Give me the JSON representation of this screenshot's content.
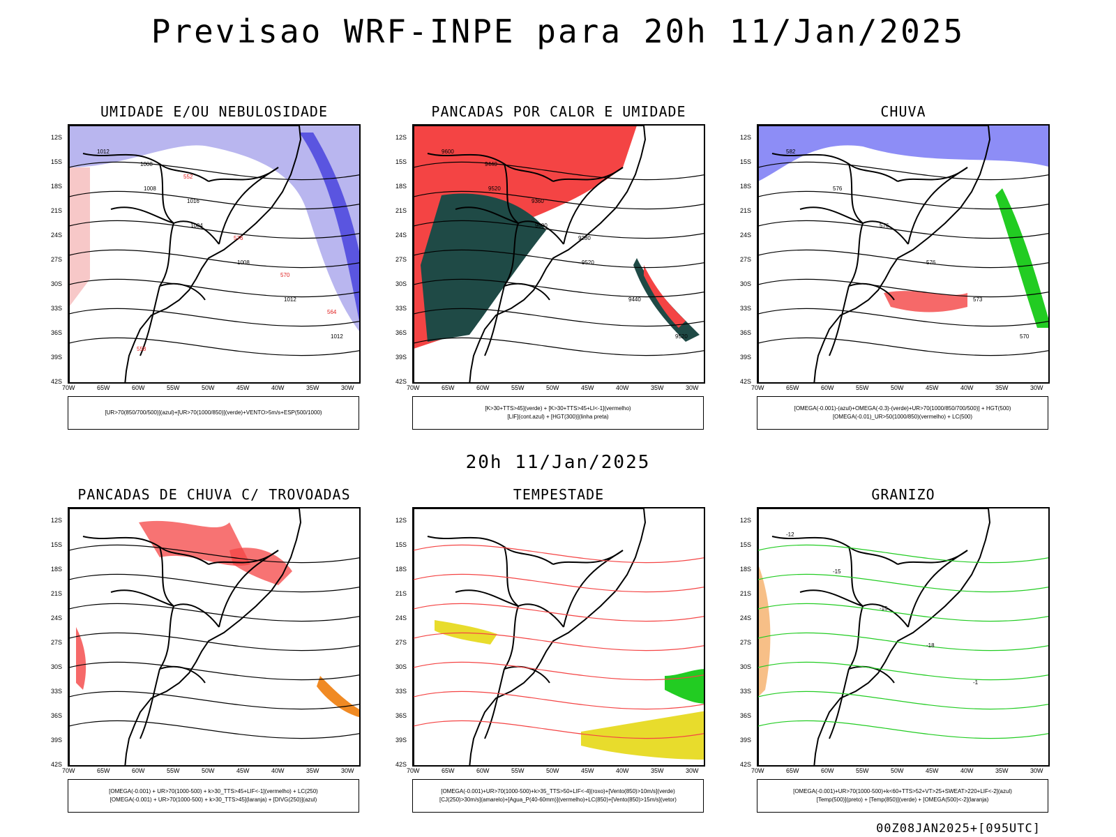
{
  "title": "Previsao WRF-INPE  para 20h 11/Jan/2025",
  "mid_title": "20h 11/Jan/2025",
  "footer": "00Z08JAN2025+[095UTC]",
  "lat_ticks": [
    "12S",
    "15S",
    "18S",
    "21S",
    "24S",
    "27S",
    "30S",
    "33S",
    "36S",
    "39S",
    "42S"
  ],
  "lon_ticks": [
    "70W",
    "65W",
    "60W",
    "55W",
    "50W",
    "45W",
    "40W",
    "35W",
    "30W"
  ],
  "panels": [
    {
      "title": "UMIDADE E/OU NEBULOSIDADE",
      "legend": [
        "[UR>70(850/700/500)](azul)+[UR>70(1000/850)](verde)+VENTO>5m/s+ESP(500/1000)"
      ],
      "contour_labels": [
        "1012",
        "1008",
        "1004",
        "1008",
        "1012",
        "1012",
        "1008",
        "1016",
        "576",
        "570",
        "564",
        "558",
        "552"
      ]
    },
    {
      "title": "PANCADAS POR CALOR E UMIDADE",
      "legend": [
        "[K>30+TTS>45](verde) + [K>30+TTS>45+LI<-1](vermelho)",
        "[LIF](cont.azul) + [HGT(300)](linha preta)"
      ],
      "contour_labels": [
        "9600",
        "9520",
        "9600",
        "9520",
        "9440",
        "9520",
        "9440",
        "9360",
        "9280"
      ]
    },
    {
      "title": "CHUVA",
      "legend": [
        "[OMEGA(-0.001)-(azul)+OMEGA(-0.3)-(verde)+UR>70(1000/850/700/500)] + HGT(500)",
        "[OMEGA(-0.01)_UR>50(1000/850)(vermelho) + LC(500)"
      ],
      "contour_labels": [
        "582",
        "576",
        "576",
        "576",
        "573",
        "570"
      ]
    },
    {
      "title": "PANCADAS DE CHUVA C/ TROVOADAS",
      "legend": [
        "[OMEGA(-0.001) + UR>70(1000-500) + k>30_TTS>45+LIF<-1](vermelho) + LC(250)",
        "[OMEGA(-0.001) + UR>70(1000-500) + k>30_TTS>45](laranja) + [DIVG(250)](azul)"
      ],
      "contour_labels": []
    },
    {
      "title": "TEMPESTADE",
      "legend": [
        "[OMEGA(-0.001)+UR>70(1000-500)+k>35_TTS>50+LIF<-4](roxo)+[Vento(850)>10m/s](verde)",
        "[CJ(250)>30m/s](amarelo)+[Agua_P(40-60mm)](vermelho)+LC(850)+[Vento(850)>15m/s](vetor)"
      ],
      "contour_labels": []
    },
    {
      "title": "GRANIZO",
      "legend": [
        "[OMEGA(-0.001)+UR>70(1000-500)+k<60+TTS>52+VT>25+SWEAT>220+LIF<-2](azul)",
        "[Temp(500)](preto) + [Temp(850)](verde) + [OMEGA(500)<-2](laranja)"
      ],
      "contour_labels": [
        "-12",
        "-15",
        "-15",
        "-18",
        "-1"
      ]
    }
  ]
}
